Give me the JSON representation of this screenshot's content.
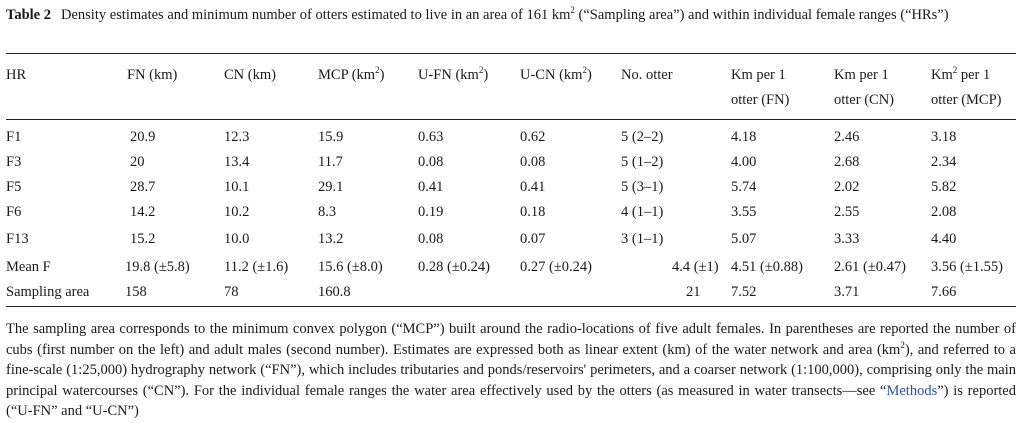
{
  "caption": {
    "label": "Table 2",
    "text_before": "Density estimates and minimum number of otters estimated to live in an area of 161 km",
    "sup": "2",
    "text_after": " (“Sampling area”) and within individual female ranges (“HRs”)"
  },
  "table": {
    "headers": [
      {
        "line1": "HR",
        "line2": ""
      },
      {
        "line1": "FN (km)",
        "line2": ""
      },
      {
        "line1": "CN (km)",
        "line2": ""
      },
      {
        "line1_pre": "MCP (km",
        "sup": "2",
        "line1_post": ")",
        "line2": ""
      },
      {
        "line1_pre": "U-FN (km",
        "sup": "2",
        "line1_post": ")",
        "line2": ""
      },
      {
        "line1_pre": "U-CN (km",
        "sup": "2",
        "line1_post": ")",
        "line2": ""
      },
      {
        "line1": "No. otter",
        "line2": ""
      },
      {
        "line1": "Km per 1",
        "line2": "otter (FN)"
      },
      {
        "line1": "Km per 1",
        "line2": "otter (CN)"
      },
      {
        "line1_pre": "Km",
        "sup": "2",
        "line1_post": " per 1",
        "line2": "otter (MCP)"
      }
    ],
    "rows": [
      [
        "F1",
        "20.9",
        "12.3",
        "15.9",
        "0.63",
        "0.62",
        "5 (2–2)",
        "4.18",
        "2.46",
        "3.18"
      ],
      [
        "F3",
        "20",
        "13.4",
        "11.7",
        "0.08",
        "0.08",
        "5 (1–2)",
        "4.00",
        "2.68",
        "2.34"
      ],
      [
        "F5",
        "28.7",
        "10.1",
        "29.1",
        "0.41",
        "0.41",
        "5 (3–1)",
        "5.74",
        "2.02",
        "5.82"
      ],
      [
        "F6",
        "14.2",
        "10.2",
        "8.3",
        "0.19",
        "0.18",
        "4 (1–1)",
        "3.55",
        "2.55",
        "2.08"
      ],
      [
        "F13",
        "15.2",
        "10.0",
        "13.2",
        "0.08",
        "0.07",
        "3 (1–1)",
        "5.07",
        "3.33",
        "4.40"
      ],
      [
        "Mean F",
        "19.8 (±5.8)",
        "11.2 (±1.6)",
        "15.6 (±8.0)",
        "0.28 (±0.24)",
        "0.27 (±0.24)",
        "4.4 (±1)",
        "4.51 (±0.88)",
        "2.61 (±0.47)",
        "3.56 (±1.55)"
      ],
      [
        "Sampling area",
        "158",
        "78",
        "160.8",
        "",
        "",
        "21",
        "7.52",
        "3.71",
        "7.66"
      ]
    ]
  },
  "footnote": {
    "p1": "The sampling area corresponds to the minimum convex polygon (“MCP”) built around the radio-locations of five adult females. In parentheses are reported the number of cubs (first number on the left) and adult males (second number). Estimates are expressed both as linear extent (km) of the water network and area (km",
    "sup": "2",
    "p2": "), and referred to a fine-scale (1:25,000) hydrography network (“FN”), which includes tributaries and ponds/reservoirs' perimeters, and a coarser network (1:100,000), comprising only the main principal watercourses (“CN”). For the individual female ranges the water area effectively used by the otters (as measured in water transects—see “",
    "link": "Methods",
    "p3": "”) is reported (“U-FN” and “U-CN”)"
  }
}
